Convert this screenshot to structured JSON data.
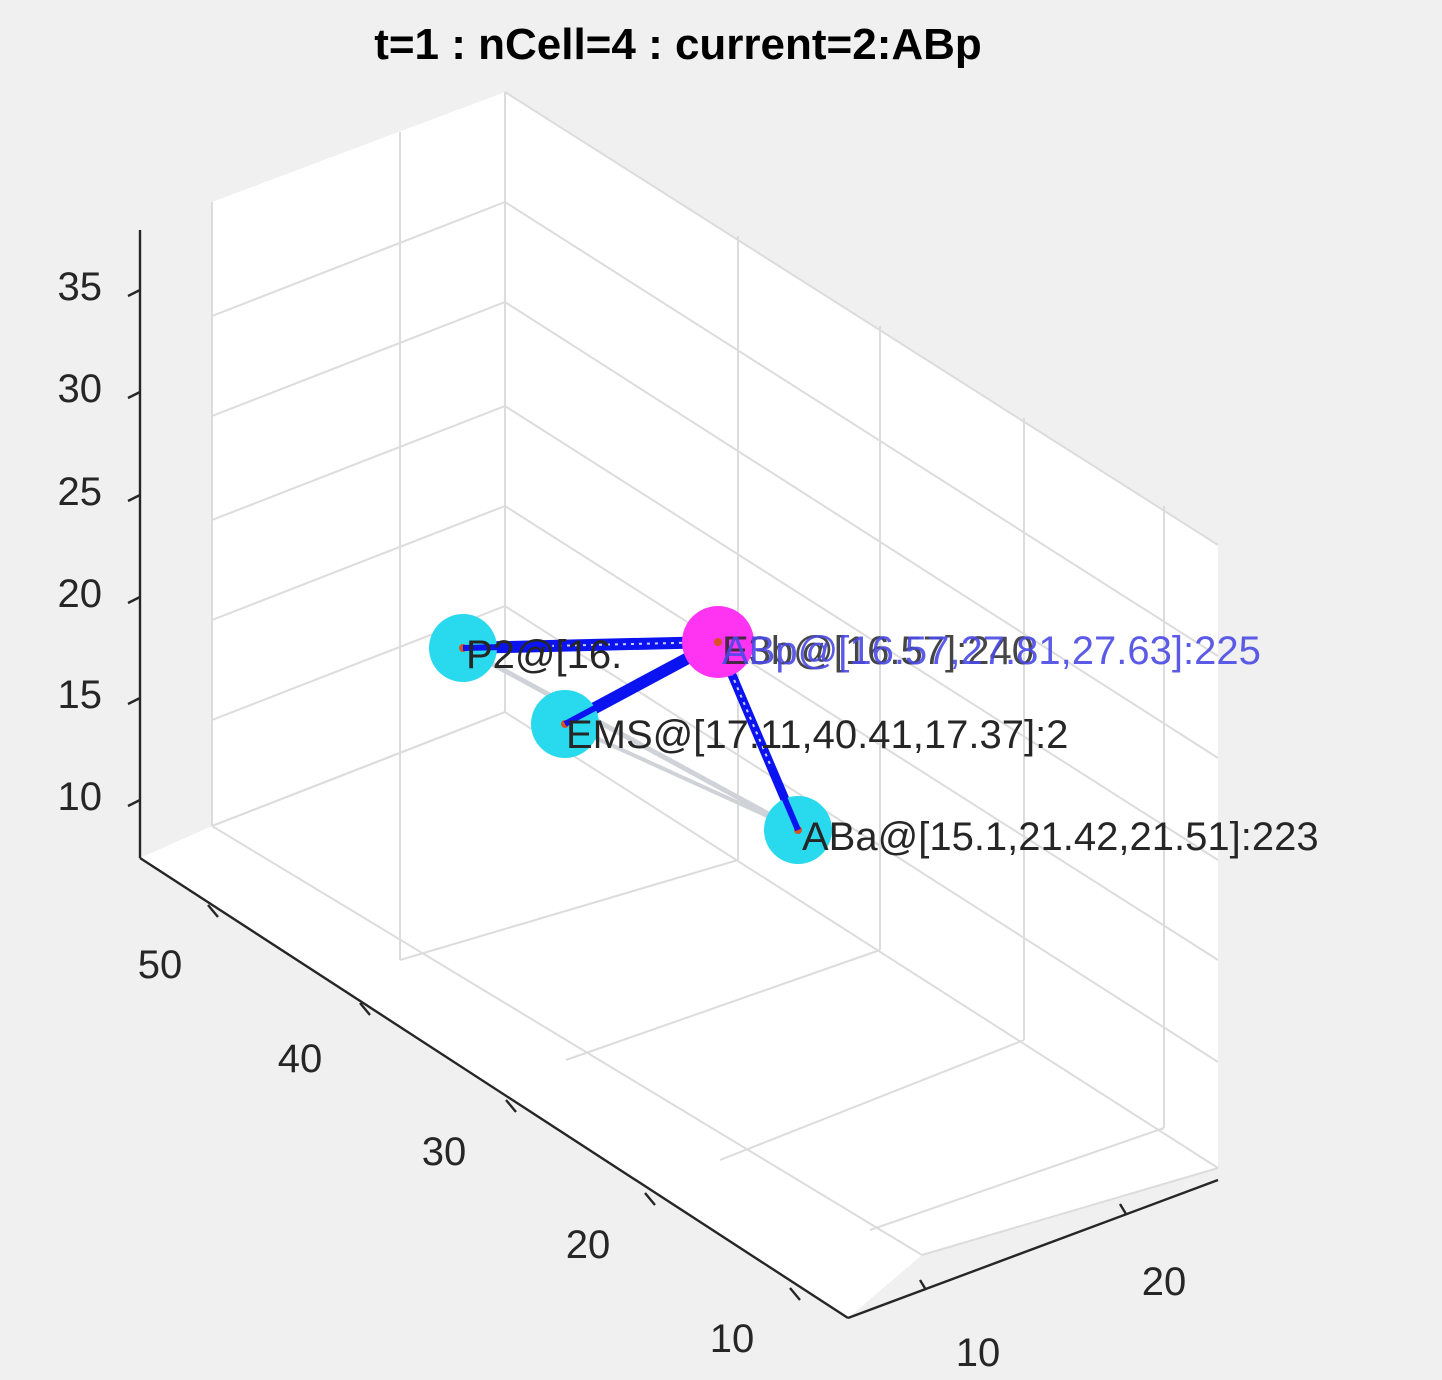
{
  "title": "t=1 : nCell=4 : current=2:ABp",
  "chart_data": {
    "type": "scatter",
    "title": "t=1 : nCell=4 : current=2:ABp",
    "z_ticks": [
      "10",
      "15",
      "20",
      "25",
      "30",
      "35"
    ],
    "y_ticks": [
      "50",
      "40",
      "30",
      "20",
      "10"
    ],
    "x_ticks": [
      "20",
      "10"
    ],
    "grid": true,
    "colors": {
      "cell": "#29d9ee",
      "current_cell": "#ff33f2",
      "link": "#0b14f0",
      "link_faint": "#cfd3d8",
      "current_label": "#4a4ae6",
      "label": "#262626",
      "center_marker": "#d9531e"
    },
    "cells": [
      {
        "name": "P2",
        "label": "P2@[16.",
        "current": false
      },
      {
        "name": "EMS",
        "label": "EMS@[17.11,40.41,17.37]:2",
        "current": false
      },
      {
        "name": "ABa",
        "label": "ABa@[15.1,21.42,21.51]:223",
        "current": false
      },
      {
        "name": "ABp",
        "label": "ABp@[16.57,27.81,27.63]:225",
        "current": true,
        "overlap_label": "ABp@[16.57,27.81,27.63]:225",
        "underlay_label": "E3b@[16.57]:240"
      }
    ],
    "links": [
      {
        "from": "P2",
        "to": "ABp"
      },
      {
        "from": "EMS",
        "to": "ABp"
      },
      {
        "from": "ABa",
        "to": "ABp"
      },
      {
        "from": "P2",
        "to": "ABa"
      }
    ]
  }
}
